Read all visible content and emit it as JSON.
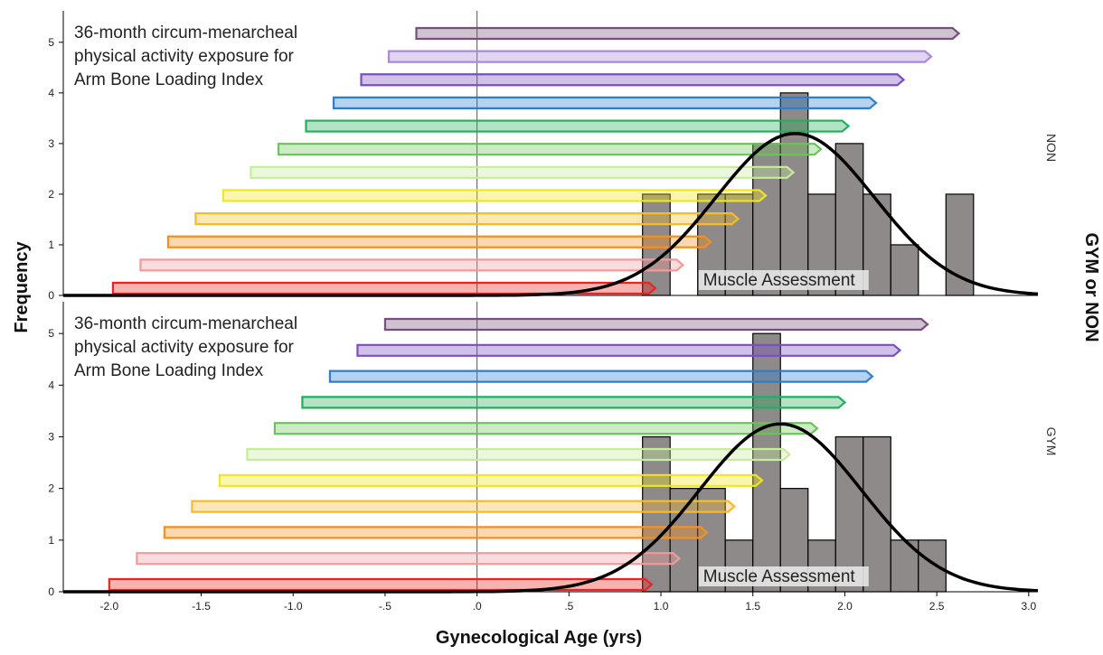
{
  "chart_data": {
    "type": "bar",
    "xlabel": "Gynecological Age (yrs)",
    "ylabel": "Frequency",
    "facet_axis_label": "GYM or NON",
    "xlim": [
      -2.25,
      3.05
    ],
    "ylim": [
      0,
      5.3
    ],
    "x_ticks": [
      -2.0,
      -1.5,
      -1.0,
      -0.5,
      0.0,
      0.5,
      1.0,
      1.5,
      2.0,
      2.5,
      3.0
    ],
    "x_tick_labels": [
      "-2.0",
      "-1.5",
      "-1.0",
      "-.5",
      ".0",
      ".5",
      "1.0",
      "1.5",
      "2.0",
      "2.5",
      "3.0"
    ],
    "y_ticks": [
      0,
      1,
      2,
      3,
      4,
      5
    ],
    "y_tick_labels": [
      "0",
      "1",
      "2",
      "3",
      "4",
      "5"
    ],
    "bin_width": 0.15,
    "reference_line_x": 0.0,
    "bar_color": "#8f8a8a",
    "curve_color": "#000000",
    "panels": [
      {
        "group": "NON",
        "annotation": [
          "36-month circum-menarcheal",
          "physical activity exposure for",
          "Arm Bone Loading Index"
        ],
        "assessment_label": "Muscle Assessment",
        "histogram": [
          {
            "x0": 0.9,
            "count": 2
          },
          {
            "x0": 1.05,
            "count": 0
          },
          {
            "x0": 1.2,
            "count": 2
          },
          {
            "x0": 1.35,
            "count": 2
          },
          {
            "x0": 1.5,
            "count": 3
          },
          {
            "x0": 1.65,
            "count": 4
          },
          {
            "x0": 1.8,
            "count": 2
          },
          {
            "x0": 1.95,
            "count": 3
          },
          {
            "x0": 2.1,
            "count": 2
          },
          {
            "x0": 2.25,
            "count": 1
          },
          {
            "x0": 2.4,
            "count": 0
          },
          {
            "x0": 2.55,
            "count": 2
          }
        ],
        "normal_curve": {
          "mean": 1.73,
          "sd": 0.43,
          "peak": 3.2
        },
        "exposure_windows": [
          {
            "start": -1.98,
            "end": 0.97,
            "color": "#ee2222"
          },
          {
            "start": -1.83,
            "end": 1.12,
            "color": "#f29a9a"
          },
          {
            "start": -1.68,
            "end": 1.27,
            "color": "#f5901e"
          },
          {
            "start": -1.53,
            "end": 1.42,
            "color": "#f7bb2a"
          },
          {
            "start": -1.38,
            "end": 1.57,
            "color": "#f0e61a"
          },
          {
            "start": -1.23,
            "end": 1.72,
            "color": "#c7ec9c"
          },
          {
            "start": -1.08,
            "end": 1.87,
            "color": "#6cc25a"
          },
          {
            "start": -0.93,
            "end": 2.02,
            "color": "#24ad5c"
          },
          {
            "start": -0.78,
            "end": 2.17,
            "color": "#2d7fce"
          },
          {
            "start": -0.63,
            "end": 2.32,
            "color": "#7b4ec0"
          },
          {
            "start": -0.48,
            "end": 2.47,
            "color": "#a98ad6"
          },
          {
            "start": -0.33,
            "end": 2.62,
            "color": "#76507c"
          }
        ]
      },
      {
        "group": "GYM",
        "annotation": [
          "36-month circum-menarcheal",
          "physical activity exposure for",
          "Arm Bone Loading Index"
        ],
        "assessment_label": "Muscle Assessment",
        "histogram": [
          {
            "x0": 0.9,
            "count": 3
          },
          {
            "x0": 1.05,
            "count": 2
          },
          {
            "x0": 1.2,
            "count": 2
          },
          {
            "x0": 1.35,
            "count": 1
          },
          {
            "x0": 1.5,
            "count": 5
          },
          {
            "x0": 1.65,
            "count": 2
          },
          {
            "x0": 1.8,
            "count": 1
          },
          {
            "x0": 1.95,
            "count": 3
          },
          {
            "x0": 2.1,
            "count": 3
          },
          {
            "x0": 2.25,
            "count": 1
          },
          {
            "x0": 2.4,
            "count": 1
          }
        ],
        "normal_curve": {
          "mean": 1.65,
          "sd": 0.44,
          "peak": 3.25
        },
        "exposure_windows": [
          {
            "start": -2.0,
            "end": 0.95,
            "color": "#ee2222"
          },
          {
            "start": -1.85,
            "end": 1.1,
            "color": "#f29a9a"
          },
          {
            "start": -1.7,
            "end": 1.25,
            "color": "#f5901e"
          },
          {
            "start": -1.55,
            "end": 1.4,
            "color": "#f7bb2a"
          },
          {
            "start": -1.4,
            "end": 1.55,
            "color": "#f0e61a"
          },
          {
            "start": -1.25,
            "end": 1.7,
            "color": "#c7ec9c"
          },
          {
            "start": -1.1,
            "end": 1.85,
            "color": "#6cc25a"
          },
          {
            "start": -0.95,
            "end": 2.0,
            "color": "#24ad5c"
          },
          {
            "start": -0.8,
            "end": 2.15,
            "color": "#2d7fce"
          },
          {
            "start": -0.65,
            "end": 2.3,
            "color": "#7b4ec0"
          },
          {
            "start": -0.5,
            "end": 2.45,
            "color": "#76507c"
          }
        ]
      }
    ]
  }
}
